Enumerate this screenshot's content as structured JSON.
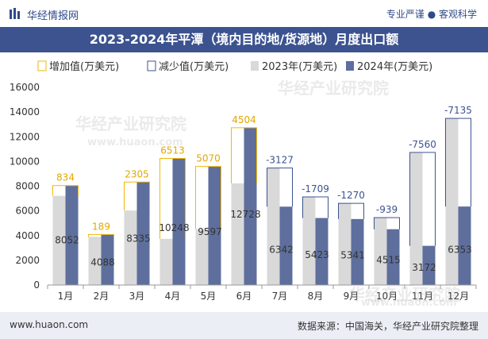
{
  "header": {
    "brand": "华经情报网",
    "tagline": "专业严谨 ● 客观科学"
  },
  "title": "2023-2024年平潭（境内目的地/货源地）月度出口额",
  "footer": {
    "url": "www.huaon.com",
    "source": "数据来源：中国海关，华经产业研究院整理"
  },
  "watermarks": [
    "华经产业研究院",
    "www.huaon.com"
  ],
  "colors": {
    "bar2023": "#d9d9d9",
    "bar2024": "#5e6f9d",
    "increase": "#f2b705",
    "decrease": "#3c5390",
    "title_bg": "#3c5390"
  },
  "chart_data": {
    "type": "bar",
    "categories": [
      "1月",
      "2月",
      "3月",
      "4月",
      "5月",
      "6月",
      "7月",
      "8月",
      "9月",
      "10月",
      "11月",
      "12月"
    ],
    "series": [
      {
        "name": "2023年(万美元)",
        "values": [
          7218,
          3899,
          6030,
          3735,
          4527,
          8224,
          9469,
          7132,
          6611,
          5454,
          10732,
          13488
        ]
      },
      {
        "name": "2024年(万美元)",
        "values": [
          8052,
          4088,
          8335,
          10248,
          9597,
          12728,
          6342,
          5423,
          5341,
          4515,
          3172,
          6353
        ]
      }
    ],
    "change": [
      "834",
      "189",
      "2305",
      "6513",
      "5070",
      "4504",
      "-3127",
      "-1709",
      "-1270",
      "-939",
      "-7560",
      "-7135"
    ],
    "legend": [
      "增加值(万美元)",
      "减少值(万美元)",
      "2023年(万美元)",
      "2024年(万美元)"
    ],
    "legend_position": "top-left",
    "ylim": [
      0,
      16000
    ],
    "yticks": [
      "0",
      "2000",
      "4000",
      "6000",
      "8000",
      "10000",
      "12000",
      "14000",
      "16000"
    ],
    "grid": false
  }
}
